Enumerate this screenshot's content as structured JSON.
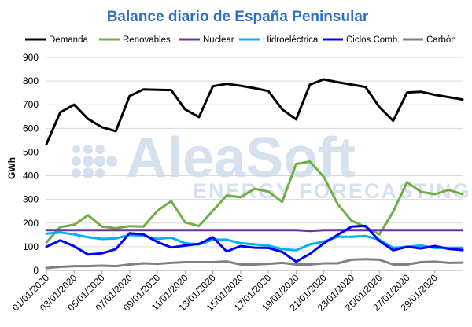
{
  "chart_data": {
    "type": "line",
    "title": "Balance diario de España Peninsular",
    "ylabel": "GWh",
    "xlabel": "",
    "ylim": [
      0,
      900
    ],
    "yticks": [
      0,
      100,
      200,
      300,
      400,
      500,
      600,
      700,
      800,
      900
    ],
    "grid": true,
    "legend_position": "top",
    "watermark": {
      "line1": "AleaSoft",
      "line2": "ENERGY FORECASTING"
    },
    "x": [
      "01/01/2020",
      "02/01/2020",
      "03/01/2020",
      "04/01/2020",
      "05/01/2020",
      "06/01/2020",
      "07/01/2020",
      "08/01/2020",
      "09/01/2020",
      "10/01/2020",
      "11/01/2020",
      "12/01/2020",
      "13/01/2020",
      "14/01/2020",
      "15/01/2020",
      "16/01/2020",
      "17/01/2020",
      "18/01/2020",
      "19/01/2020",
      "20/01/2020",
      "21/01/2020",
      "22/01/2020",
      "23/01/2020",
      "24/01/2020",
      "25/01/2020",
      "26/01/2020",
      "27/01/2020",
      "28/01/2020",
      "29/01/2020",
      "30/01/2020",
      "31/01/2020"
    ],
    "xtick_labels": [
      "01/01/2020",
      "03/01/2020",
      "05/01/2020",
      "07/01/2020",
      "09/01/2020",
      "11/01/2020",
      "13/01/2020",
      "15/01/2020",
      "17/01/2020",
      "19/01/2020",
      "21/01/2020",
      "23/01/2020",
      "25/01/2020",
      "27/01/2020",
      "29/01/2020"
    ],
    "series": [
      {
        "name": "Demanda",
        "color": "#000000",
        "values": [
          533,
          668,
          700,
          640,
          605,
          588,
          737,
          765,
          763,
          762,
          680,
          648,
          778,
          788,
          780,
          770,
          758,
          680,
          638,
          785,
          807,
          795,
          785,
          775,
          690,
          632,
          752,
          755,
          742,
          732,
          722
        ]
      },
      {
        "name": "Renovables",
        "color": "#70ad47",
        "values": [
          118,
          183,
          193,
          233,
          185,
          178,
          187,
          185,
          252,
          293,
          203,
          188,
          252,
          317,
          310,
          345,
          333,
          290,
          450,
          460,
          395,
          280,
          210,
          183,
          152,
          248,
          373,
          332,
          322,
          340,
          322
        ]
      },
      {
        "name": "Nuclear",
        "color": "#7030a0",
        "values": [
          170,
          170,
          170,
          170,
          170,
          170,
          170,
          170,
          170,
          170,
          170,
          170,
          170,
          170,
          170,
          170,
          170,
          170,
          170,
          167,
          170,
          170,
          170,
          170,
          170,
          170,
          170,
          170,
          170,
          170,
          170
        ]
      },
      {
        "name": "Hidroeléctrica",
        "color": "#00b0f0",
        "values": [
          155,
          160,
          152,
          140,
          133,
          135,
          150,
          145,
          133,
          138,
          115,
          110,
          130,
          130,
          115,
          110,
          105,
          90,
          85,
          110,
          122,
          142,
          142,
          145,
          130,
          95,
          100,
          105,
          95,
          95,
          95
        ]
      },
      {
        "name": "Ciclos Comb.",
        "color": "#0000ff",
        "values": [
          100,
          127,
          102,
          67,
          72,
          90,
          157,
          152,
          120,
          97,
          105,
          112,
          140,
          80,
          103,
          96,
          95,
          78,
          37,
          70,
          115,
          150,
          185,
          188,
          125,
          85,
          100,
          93,
          103,
          91,
          86
        ]
      },
      {
        "name": "Carbón",
        "color": "#808080",
        "values": [
          10,
          15,
          18,
          18,
          20,
          18,
          25,
          30,
          28,
          32,
          35,
          35,
          35,
          38,
          25,
          25,
          28,
          32,
          25,
          25,
          30,
          30,
          45,
          47,
          45,
          25,
          25,
          35,
          37,
          32,
          33
        ]
      }
    ]
  }
}
